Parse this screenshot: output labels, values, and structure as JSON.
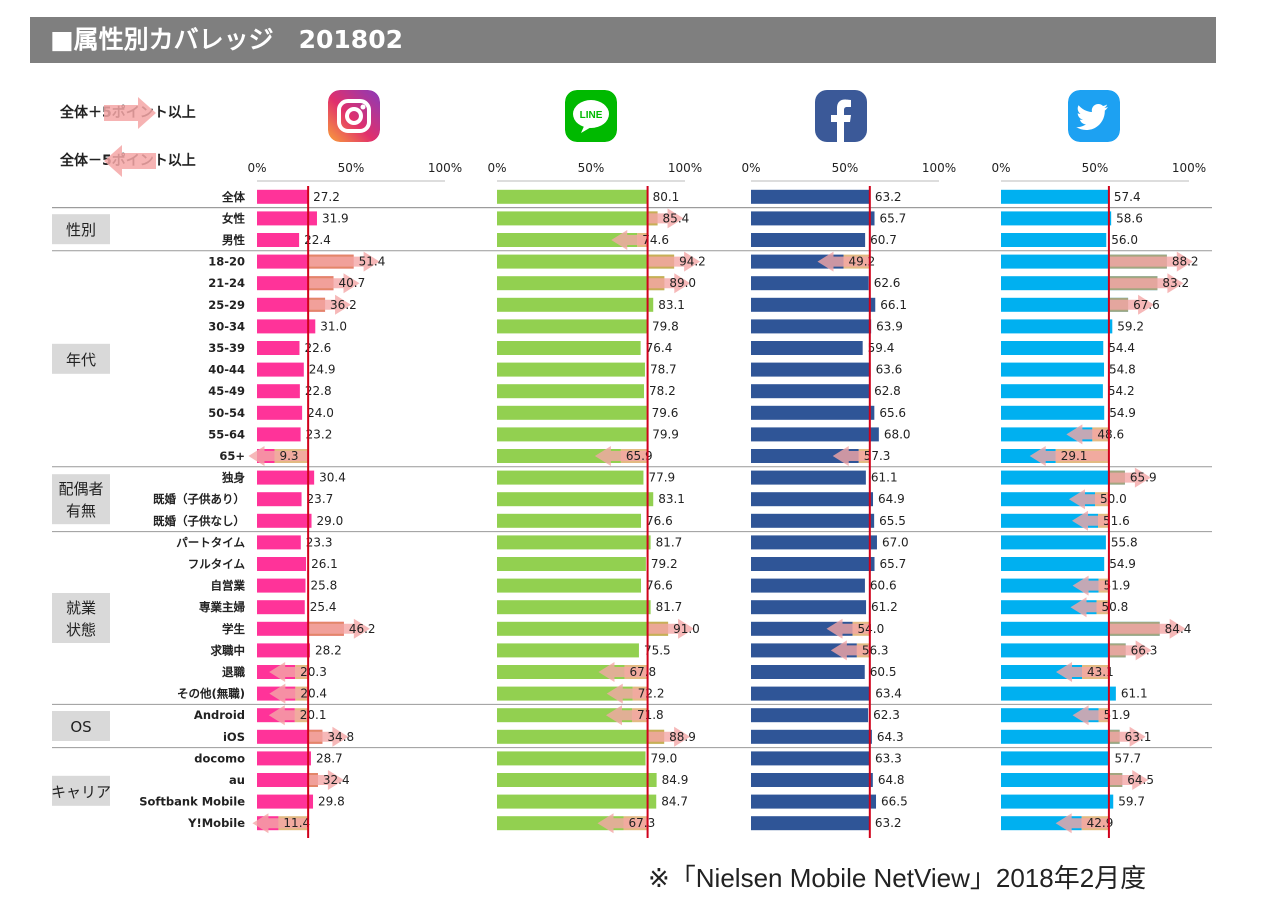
{
  "header": {
    "title": "■属性別カバレッジ　201802"
  },
  "legend": {
    "plus_label": "全体＋5ポイント以上",
    "minus_label": "全体－5ポイント以上"
  },
  "footnote": "※「Nielsen Mobile NetView」2018年2月度",
  "icons": [
    "instagram-icon",
    "line-icon",
    "facebook-icon",
    "twitter-icon"
  ],
  "chart_data": {
    "type": "bar",
    "orientation": "horizontal",
    "categories": [
      "全体",
      "女性",
      "男性",
      "18-20",
      "21-24",
      "25-29",
      "30-34",
      "35-39",
      "40-44",
      "45-49",
      "50-54",
      "55-64",
      "65+",
      "独身",
      "既婚（子供あり）",
      "既婚（子供なし）",
      "パートタイム",
      "フルタイム",
      "自営業",
      "専業主婦",
      "学生",
      "求職中",
      "退職",
      "その他(無職)",
      "Android",
      "iOS",
      "docomo",
      "au",
      "Softbank Mobile",
      "Y!Mobile"
    ],
    "groups": [
      {
        "label": "性別",
        "start": 1,
        "end": 2
      },
      {
        "label": "年代",
        "start": 3,
        "end": 12
      },
      {
        "label": "配偶者\n有無",
        "start": 13,
        "end": 15
      },
      {
        "label": "就業\n状態",
        "start": 16,
        "end": 23
      },
      {
        "label": "OS",
        "start": 24,
        "end": 25
      },
      {
        "label": "キャリア",
        "start": 26,
        "end": 29
      }
    ],
    "ticks": [
      "0%",
      "50%",
      "100%"
    ],
    "xlim": [
      0,
      100
    ],
    "series": [
      {
        "color": "#ff3399",
        "values": [
          27.2,
          31.9,
          22.4,
          51.4,
          40.7,
          36.2,
          31.0,
          22.6,
          24.9,
          22.8,
          24.0,
          23.2,
          9.3,
          30.4,
          23.7,
          29.0,
          23.3,
          26.1,
          25.8,
          25.4,
          46.2,
          28.2,
          20.3,
          20.4,
          20.1,
          34.8,
          28.7,
          32.4,
          29.8,
          11.4
        ],
        "labels": [
          "27.2",
          "31.9",
          "22.4",
          "51.4",
          "40.7",
          "36.2",
          "31.0",
          "22.6",
          "24.9",
          "22.8",
          "24.0",
          "23.2",
          "9.3",
          "30.4",
          "23.7",
          "29.0",
          "23.3",
          "26.1",
          "25.8",
          "25.4",
          "46.2",
          "28.2",
          "20.3",
          "20.4",
          "20.1",
          "34.8",
          "28.7",
          "32.4",
          "29.8",
          "11.4"
        ]
      },
      {
        "color": "#92d050",
        "values": [
          80.1,
          85.4,
          74.6,
          94.2,
          89.0,
          83.1,
          79.8,
          76.4,
          78.7,
          78.2,
          79.6,
          79.9,
          65.9,
          77.9,
          83.1,
          76.6,
          81.7,
          79.2,
          76.6,
          81.7,
          91.0,
          75.5,
          67.8,
          72.2,
          71.8,
          88.9,
          79.0,
          84.9,
          84.7,
          67.3
        ],
        "labels": [
          "80.1",
          "85.4",
          "74.6",
          "94.2",
          "89.0",
          "83.1",
          "79.8",
          "76.4",
          "78.7",
          "78.2",
          "79.6",
          "79.9",
          "65.9",
          "77.9",
          "83.1",
          "76.6",
          "81.7",
          "79.2",
          "76.6",
          "81.7",
          "91.0",
          "75.5",
          "67.8",
          "72.2",
          "71.8",
          "88.9",
          "79.0",
          "84.9",
          "84.7",
          "67.3"
        ]
      },
      {
        "color": "#2f5597",
        "values": [
          63.2,
          65.7,
          60.7,
          49.2,
          62.6,
          66.1,
          63.9,
          59.4,
          63.6,
          62.8,
          65.6,
          68.0,
          57.3,
          61.1,
          64.9,
          65.5,
          67.0,
          65.7,
          60.6,
          61.2,
          54.0,
          56.3,
          60.5,
          63.4,
          62.3,
          64.3,
          63.3,
          64.8,
          66.5,
          63.2
        ],
        "labels": [
          "63.2",
          "65.7",
          "60.7",
          "49.2",
          "62.6",
          "66.1",
          "63.9",
          "59.4",
          "63.6",
          "62.8",
          "65.6",
          "68.0",
          "57.3",
          "61.1",
          "64.9",
          "65.5",
          "67.0",
          "65.7",
          "60.6",
          "61.2",
          "54.0",
          "56.3",
          "60.5",
          "63.4",
          "62.3",
          "64.3",
          "63.3",
          "64.8",
          "66.5",
          "63.2"
        ]
      },
      {
        "color": "#00b0f0",
        "values": [
          57.4,
          58.6,
          56.0,
          88.2,
          83.2,
          67.6,
          59.2,
          54.4,
          54.8,
          54.2,
          54.9,
          48.6,
          29.1,
          65.9,
          50.0,
          51.6,
          55.8,
          54.9,
          51.9,
          50.8,
          84.4,
          66.3,
          43.1,
          61.1,
          51.9,
          63.1,
          57.7,
          64.5,
          59.7,
          42.9
        ],
        "labels": [
          "57.4",
          "58.6",
          "56.0",
          "88.2",
          "83.2",
          "67.6",
          "59.2",
          "54.4",
          "54.8",
          "54.2",
          "54.9",
          "48.6",
          "29.1",
          "65.9",
          "50.0",
          "51.6",
          "55.8",
          "54.9",
          "51.9",
          "50.8",
          "84.4",
          "66.3",
          "43.1",
          "61.1",
          "51.9",
          "63.1",
          "57.7",
          "64.5",
          "59.7",
          "42.9"
        ]
      }
    ]
  }
}
